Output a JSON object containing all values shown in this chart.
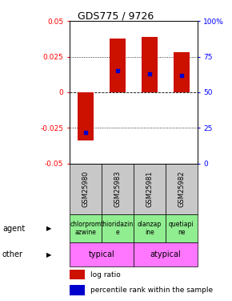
{
  "title": "GDS775 / 9726",
  "samples": [
    "GSM25980",
    "GSM25983",
    "GSM25981",
    "GSM25982"
  ],
  "log_ratios": [
    -0.034,
    0.038,
    0.039,
    0.028
  ],
  "percentile_ranks": [
    22,
    65,
    63,
    62
  ],
  "agent_texts": [
    "chlorprom\nazwine",
    "thioridazin\ne",
    "olanzap\nine",
    "quetiapi\nne"
  ],
  "agent_color": "#90EE90",
  "other_groups": [
    [
      "typical",
      1,
      2
    ],
    [
      "atypical",
      3,
      4
    ]
  ],
  "other_color": "#FF77FF",
  "ylim": [
    -0.05,
    0.05
  ],
  "yticks_left": [
    -0.05,
    -0.025,
    0,
    0.025,
    0.05
  ],
  "yticks_right": [
    0,
    25,
    50,
    75,
    100
  ],
  "bar_color": "#CC1100",
  "dot_color": "#0000CC",
  "bar_width": 0.5,
  "sample_bg": "#C8C8C8",
  "legend_items": [
    "log ratio",
    "percentile rank within the sample"
  ]
}
